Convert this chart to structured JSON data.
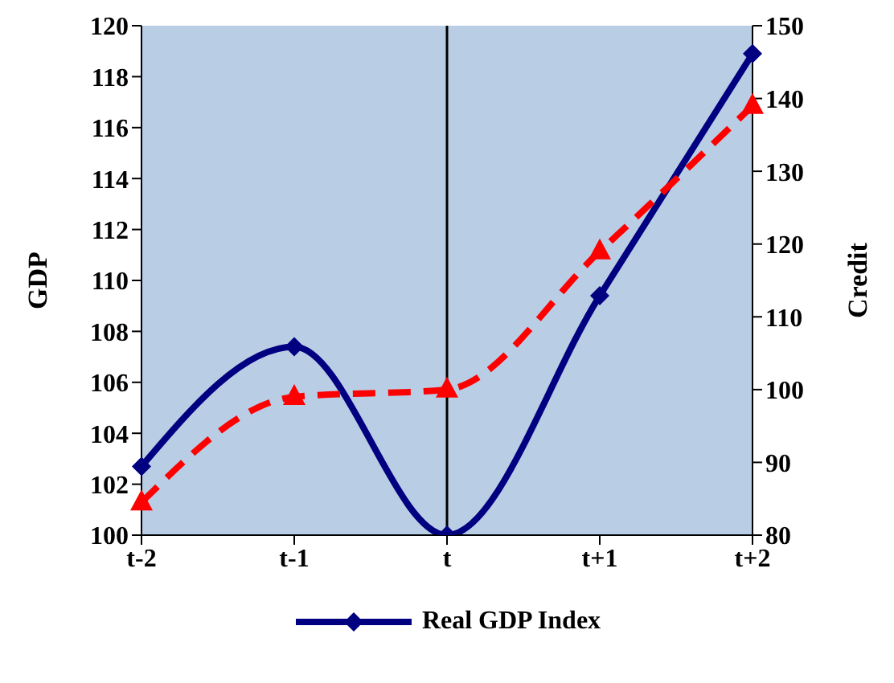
{
  "chart_data": {
    "type": "line",
    "categories": [
      "t-2",
      "t-1",
      "t",
      "t+1",
      "t+2"
    ],
    "ylabel": "GDP",
    "y2label": "Credit",
    "series": [
      {
        "name": "Real GDP Index",
        "color": "#000080",
        "values": [
          102.7,
          107.4,
          100,
          109.4,
          118.9
        ],
        "marker": "diamond",
        "line_style": "solid"
      },
      {
        "color": "#ff0000",
        "values": [
          84.5,
          99,
          100,
          119,
          139
        ],
        "axis": "y2",
        "marker": "triangle",
        "line_style": "dashed"
      }
    ],
    "ylim": [
      100,
      120
    ],
    "yticks": [
      100,
      102,
      104,
      106,
      108,
      110,
      112,
      114,
      116,
      118,
      120
    ],
    "y2lim": [
      80,
      150
    ],
    "y2ticks": [
      80,
      90,
      100,
      110,
      120,
      130,
      140,
      150
    ],
    "ref_lines": [
      {
        "axis": "x",
        "value": "t",
        "color": "#000000"
      }
    ],
    "grid": false,
    "legend": "bottom"
  }
}
